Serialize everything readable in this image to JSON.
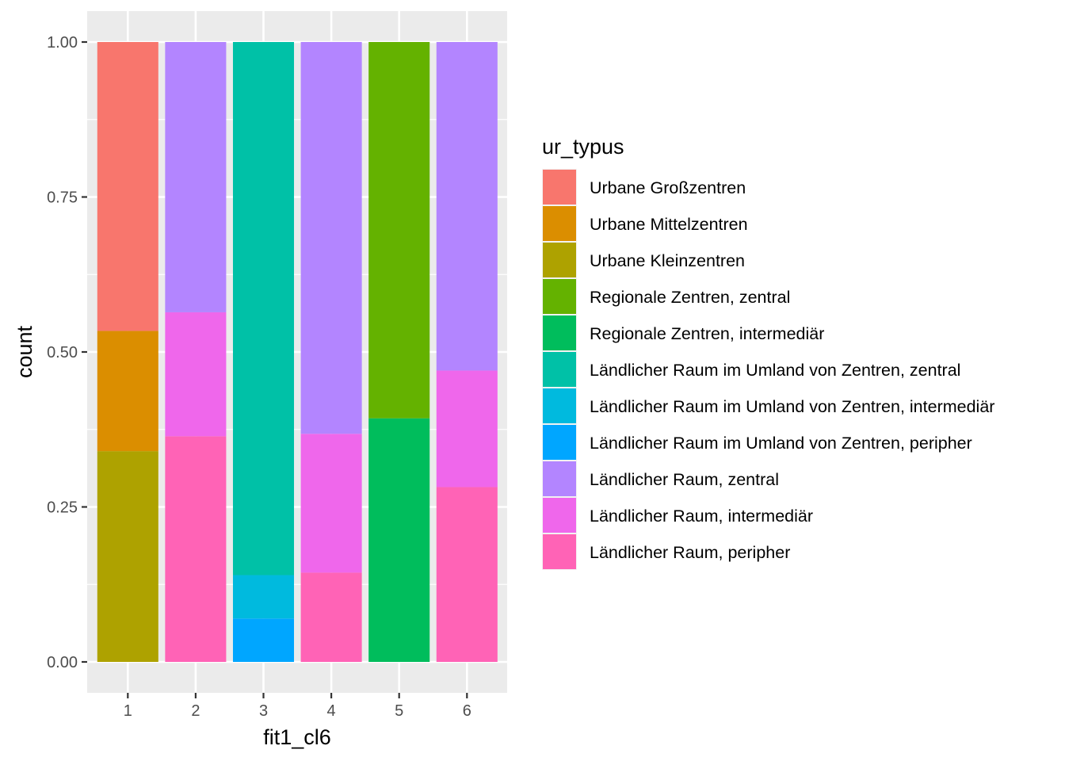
{
  "chart_data": {
    "type": "bar",
    "stacked": true,
    "xlabel": "fit1_cl6",
    "ylabel": "count",
    "ylim": [
      0,
      1
    ],
    "y_ticks": [
      "0.00",
      "0.25",
      "0.50",
      "0.75",
      "1.00"
    ],
    "y_tick_values": [
      0,
      0.25,
      0.5,
      0.75,
      1
    ],
    "categories": [
      "1",
      "2",
      "3",
      "4",
      "5",
      "6"
    ],
    "legend_title": "ur_typus",
    "legend_placement": "right",
    "grid": true,
    "panel_background": "#ebebeb",
    "series": [
      {
        "name": "Urbane Großzentren",
        "color": "#F8766D",
        "values": [
          0.466,
          0,
          0,
          0,
          0,
          0
        ]
      },
      {
        "name": "Urbane Mittelzentren",
        "color": "#DB8E00",
        "values": [
          0.194,
          0,
          0,
          0,
          0,
          0
        ]
      },
      {
        "name": "Urbane Kleinzentren",
        "color": "#AEA200",
        "values": [
          0.34,
          0,
          0,
          0,
          0,
          0
        ]
      },
      {
        "name": "Regionale Zentren, zentral",
        "color": "#64B200",
        "values": [
          0,
          0,
          0,
          0,
          0.607,
          0
        ]
      },
      {
        "name": "Regionale Zentren, intermediär",
        "color": "#00BD5C",
        "values": [
          0,
          0,
          0,
          0,
          0.393,
          0
        ]
      },
      {
        "name": "Ländlicher Raum im Umland von Zentren, zentral",
        "color": "#00C1A7",
        "values": [
          0,
          0,
          0.86,
          0,
          0,
          0
        ]
      },
      {
        "name": "Ländlicher Raum im Umland von Zentren, intermediär",
        "color": "#00BADE",
        "values": [
          0,
          0,
          0.07,
          0,
          0,
          0
        ]
      },
      {
        "name": "Ländlicher Raum im Umland von Zentren, peripher",
        "color": "#00A6FF",
        "values": [
          0,
          0,
          0.07,
          0,
          0,
          0
        ]
      },
      {
        "name": "Ländlicher Raum, zentral",
        "color": "#B385FF",
        "values": [
          0,
          0.436,
          0,
          0.632,
          0,
          0.53
        ]
      },
      {
        "name": "Ländlicher Raum, intermediär",
        "color": "#EF67EB",
        "values": [
          0,
          0.2,
          0,
          0.224,
          0,
          0.188
        ]
      },
      {
        "name": "Ländlicher Raum, peripher",
        "color": "#FF63B6",
        "values": [
          0,
          0.364,
          0,
          0.144,
          0,
          0.282
        ]
      }
    ]
  }
}
